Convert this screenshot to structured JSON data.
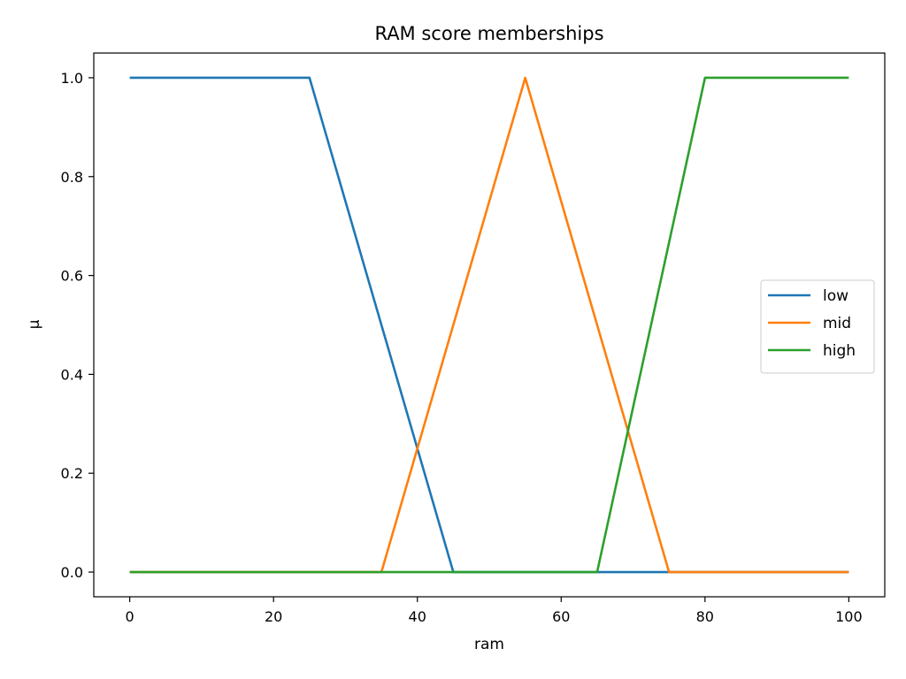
{
  "chart_data": {
    "type": "line",
    "title": "RAM score memberships",
    "xlabel": "ram",
    "ylabel": "μ",
    "xlim": [
      -5,
      105
    ],
    "ylim": [
      -0.05,
      1.05
    ],
    "xticks": [
      0,
      20,
      40,
      60,
      80,
      100
    ],
    "yticks": [
      0.0,
      0.2,
      0.4,
      0.6,
      0.8,
      1.0
    ],
    "ytick_labels": [
      "0.0",
      "0.2",
      "0.4",
      "0.6",
      "0.8",
      "1.0"
    ],
    "grid": false,
    "legend_position": "center-right",
    "series": [
      {
        "name": "low",
        "color": "#1f77b4",
        "x": [
          0,
          25,
          45,
          100
        ],
        "y": [
          1,
          1,
          0,
          0
        ]
      },
      {
        "name": "mid",
        "color": "#ff7f0e",
        "x": [
          0,
          35,
          55,
          75,
          100
        ],
        "y": [
          0,
          0,
          1,
          0,
          0
        ]
      },
      {
        "name": "high",
        "color": "#2ca02c",
        "x": [
          0,
          65,
          80,
          100
        ],
        "y": [
          0,
          0,
          1,
          1
        ]
      }
    ]
  }
}
